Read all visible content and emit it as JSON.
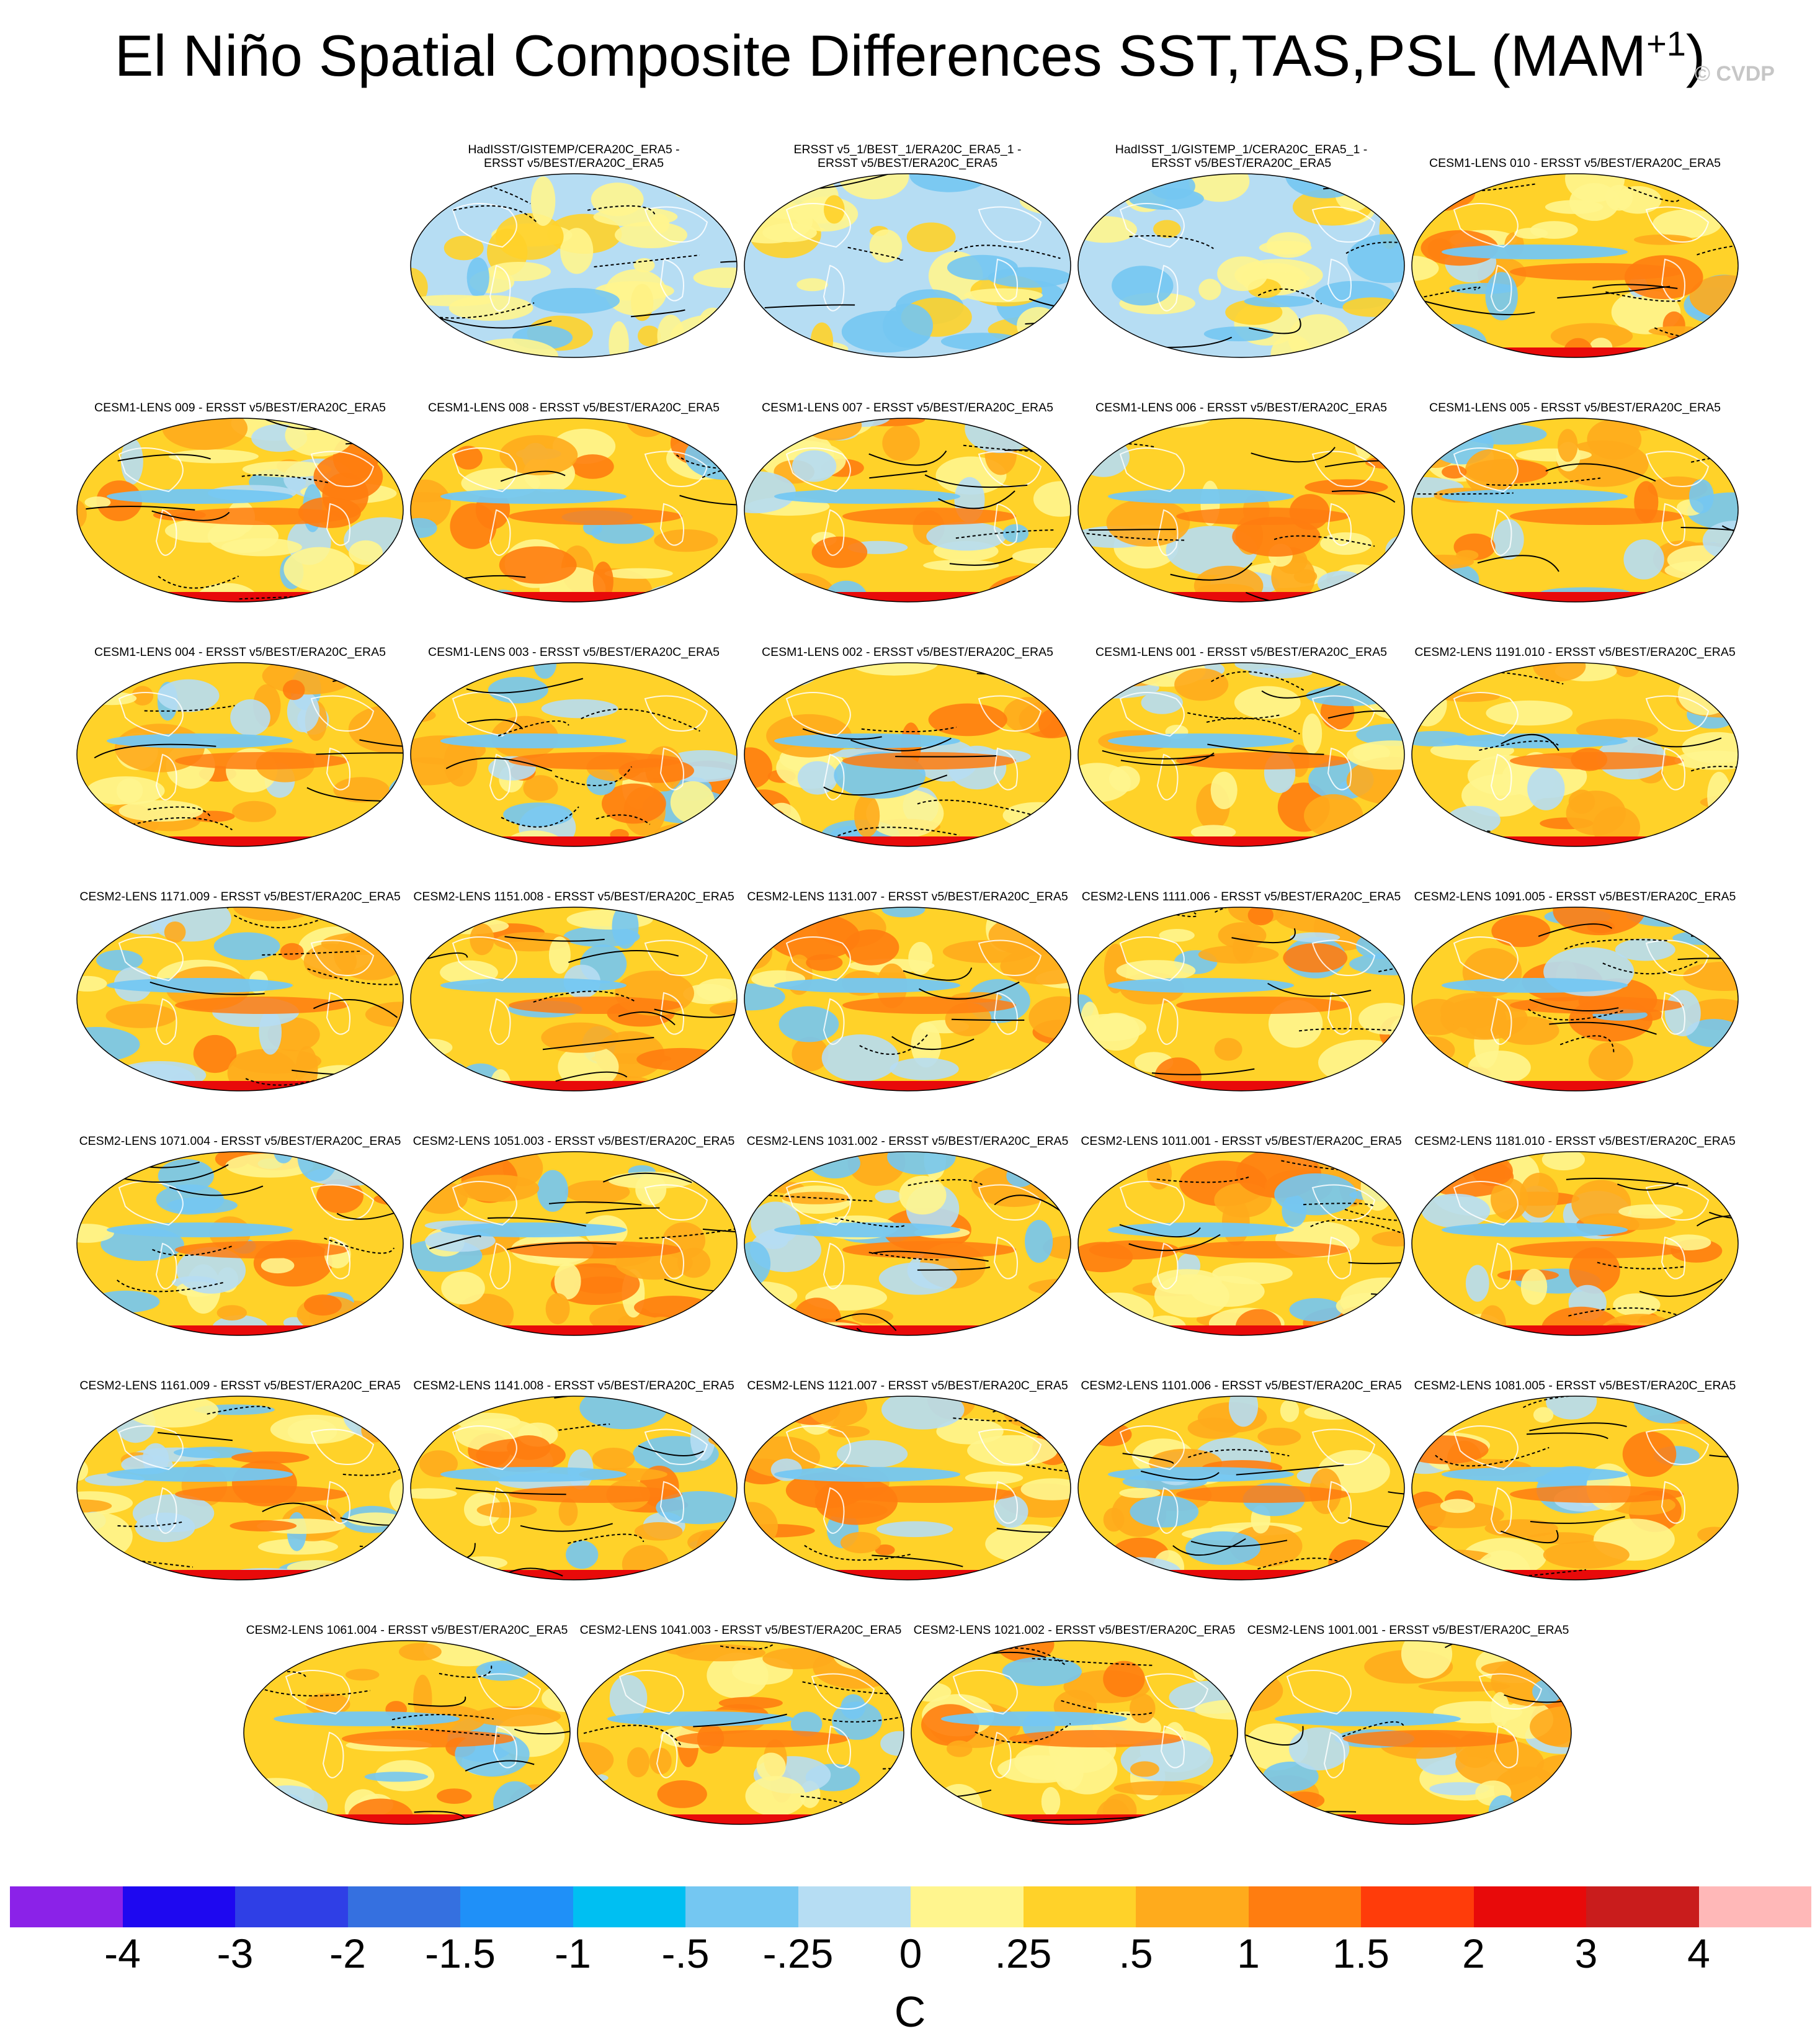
{
  "title": {
    "text": "El Niño Spatial Composite Differences SST,TAS,PSL (MAM",
    "superscript": "+1",
    "close": ")"
  },
  "watermark": "© CVDP",
  "chart_data": {
    "type": "heatmap",
    "title": "El Niño Spatial Composite Differences SST,TAS,PSL (MAM+1)",
    "projection": "robinson",
    "overlay": "PSL contours (solid positive, dashed negative)",
    "panels": [
      [
        "HadISST/GISTEMP/CERA20C_ERA5 -\nERSST v5/BEST/ERA20C_ERA5",
        "ERSST v5_1/BEST_1/ERA20C_ERA5_1 -\nERSST v5/BEST/ERA20C_ERA5",
        "HadISST_1/GISTEMP_1/CERA20C_ERA5_1 -\nERSST v5/BEST/ERA20C_ERA5",
        "CESM1-LENS 010 - ERSST v5/BEST/ERA20C_ERA5"
      ],
      [
        "CESM1-LENS 009 - ERSST v5/BEST/ERA20C_ERA5",
        "CESM1-LENS 008 - ERSST v5/BEST/ERA20C_ERA5",
        "CESM1-LENS 007 - ERSST v5/BEST/ERA20C_ERA5",
        "CESM1-LENS 006 - ERSST v5/BEST/ERA20C_ERA5",
        "CESM1-LENS 005 - ERSST v5/BEST/ERA20C_ERA5"
      ],
      [
        "CESM1-LENS 004 - ERSST v5/BEST/ERA20C_ERA5",
        "CESM1-LENS 003 - ERSST v5/BEST/ERA20C_ERA5",
        "CESM1-LENS 002 - ERSST v5/BEST/ERA20C_ERA5",
        "CESM1-LENS 001 - ERSST v5/BEST/ERA20C_ERA5",
        "CESM2-LENS 1191.010 - ERSST v5/BEST/ERA20C_ERA5"
      ],
      [
        "CESM2-LENS 1171.009 - ERSST v5/BEST/ERA20C_ERA5",
        "CESM2-LENS 1151.008 - ERSST v5/BEST/ERA20C_ERA5",
        "CESM2-LENS 1131.007 - ERSST v5/BEST/ERA20C_ERA5",
        "CESM2-LENS 1111.006 - ERSST v5/BEST/ERA20C_ERA5",
        "CESM2-LENS 1091.005 - ERSST v5/BEST/ERA20C_ERA5"
      ],
      [
        "CESM2-LENS 1071.004 - ERSST v5/BEST/ERA20C_ERA5",
        "CESM2-LENS 1051.003 - ERSST v5/BEST/ERA20C_ERA5",
        "CESM2-LENS 1031.002 - ERSST v5/BEST/ERA20C_ERA5",
        "CESM2-LENS 1011.001 - ERSST v5/BEST/ERA20C_ERA5",
        "CESM2-LENS 1181.010 - ERSST v5/BEST/ERA20C_ERA5"
      ],
      [
        "CESM2-LENS 1161.009 - ERSST v5/BEST/ERA20C_ERA5",
        "CESM2-LENS 1141.008 - ERSST v5/BEST/ERA20C_ERA5",
        "CESM2-LENS 1121.007 - ERSST v5/BEST/ERA20C_ERA5",
        "CESM2-LENS 1101.006 - ERSST v5/BEST/ERA20C_ERA5",
        "CESM2-LENS 1081.005 - ERSST v5/BEST/ERA20C_ERA5"
      ],
      [
        "CESM2-LENS 1061.004 - ERSST v5/BEST/ERA20C_ERA5",
        "CESM2-LENS 1041.003 - ERSST v5/BEST/ERA20C_ERA5",
        "CESM2-LENS 1021.002 - ERSST v5/BEST/ERA20C_ERA5",
        "CESM2-LENS 1001.001 - ERSST v5/BEST/ERA20C_ERA5"
      ]
    ],
    "colorbar": {
      "unit": "C",
      "ticks": [
        "-4",
        "-3",
        "-2",
        "-1.5",
        "-1",
        "-.5",
        "-.25",
        "0",
        ".25",
        ".5",
        "1",
        "1.5",
        "2",
        "3",
        "4"
      ],
      "colors": [
        "#8b22e8",
        "#1e08f0",
        "#2f3fe6",
        "#3570e0",
        "#1f90f8",
        "#00bff2",
        "#74c7f2",
        "#b6ddf3",
        "#fff58e",
        "#ffd229",
        "#ffab1c",
        "#ff7d10",
        "#ff3c0a",
        "#e80a0a",
        "#c91c1c",
        "#ffb8b8"
      ]
    },
    "panel_fill": {
      "obs_differences": "mostly light blue / pale yellow, near zero",
      "model_differences": "mostly yellow / orange with blue tropical Pacific bands, red near Antarctica"
    }
  }
}
